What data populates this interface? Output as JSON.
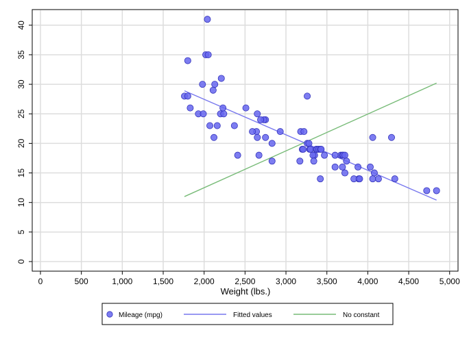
{
  "chart_data": {
    "type": "scatter",
    "title": "",
    "xlabel": "Weight (lbs.)",
    "ylabel": "",
    "xlim": [
      0,
      5000
    ],
    "ylim": [
      0,
      42
    ],
    "grid": true,
    "legend_position": "bottom",
    "x_ticks": [
      0,
      500,
      1000,
      1500,
      2000,
      2500,
      3000,
      3500,
      4000,
      4500,
      5000
    ],
    "x_tick_labels": [
      "0",
      "500",
      "1,000",
      "1,500",
      "2,000",
      "2,500",
      "3,000",
      "3,500",
      "4,000",
      "4,500",
      "5,000"
    ],
    "y_ticks": [
      0,
      5,
      10,
      15,
      20,
      25,
      30,
      35,
      40
    ],
    "y_tick_labels": [
      "0",
      "5",
      "10",
      "15",
      "20",
      "25",
      "30",
      "35",
      "40"
    ],
    "series": [
      {
        "name": "Mileage (mpg)",
        "type": "scatter",
        "color": "#6666ee",
        "x": [
          2040,
          2020,
          2050,
          1800,
          1980,
          2210,
          2110,
          2130,
          1760,
          1800,
          3260,
          1830,
          2510,
          1930,
          1990,
          2650,
          2200,
          2240,
          2230,
          2750,
          2730,
          2690,
          2070,
          2160,
          2370,
          2640,
          2590,
          2930,
          3180,
          3220,
          2120,
          2650,
          2750,
          2830,
          3260,
          3280,
          3200,
          3210,
          3290,
          3300,
          3370,
          3380,
          3400,
          3420,
          3430,
          3350,
          3330,
          3470,
          3670,
          3690,
          3700,
          3720,
          3600,
          3740,
          3170,
          2410,
          2670,
          2830,
          3340,
          3600,
          3690,
          3720,
          3880,
          3890,
          4030,
          4060,
          4080,
          4130,
          3830,
          3900,
          4060,
          3420,
          4330,
          4290,
          4720,
          4840
        ],
        "y": [
          41,
          35,
          35,
          34,
          30,
          31,
          29,
          30,
          28,
          28,
          28,
          26,
          26,
          25,
          25,
          25,
          25,
          25,
          26,
          24,
          24,
          24,
          23,
          23,
          23,
          22,
          22,
          22,
          22,
          22,
          21,
          21,
          21,
          20,
          20,
          20,
          19,
          19,
          19,
          19,
          19,
          19,
          19,
          19,
          19,
          18,
          18,
          18,
          18,
          18,
          18,
          18,
          18,
          17,
          17,
          18,
          18,
          17,
          17,
          16,
          16,
          15,
          16,
          14,
          16,
          14,
          15,
          14,
          14,
          14,
          21,
          14,
          14,
          21,
          12,
          12
        ]
      },
      {
        "name": "Fitted values",
        "type": "line",
        "color": "#7777ee",
        "x": [
          1760,
          4840
        ],
        "y": [
          28.9,
          10.4
        ]
      },
      {
        "name": "No constant",
        "type": "line",
        "color": "#77bb77",
        "x": [
          1760,
          4840
        ],
        "y": [
          11.0,
          30.2
        ]
      }
    ]
  },
  "legend": {
    "items": [
      {
        "label": "Mileage (mpg)",
        "kind": "marker"
      },
      {
        "label": "Fitted values",
        "kind": "line"
      },
      {
        "label": "No constant",
        "kind": "line"
      }
    ]
  }
}
